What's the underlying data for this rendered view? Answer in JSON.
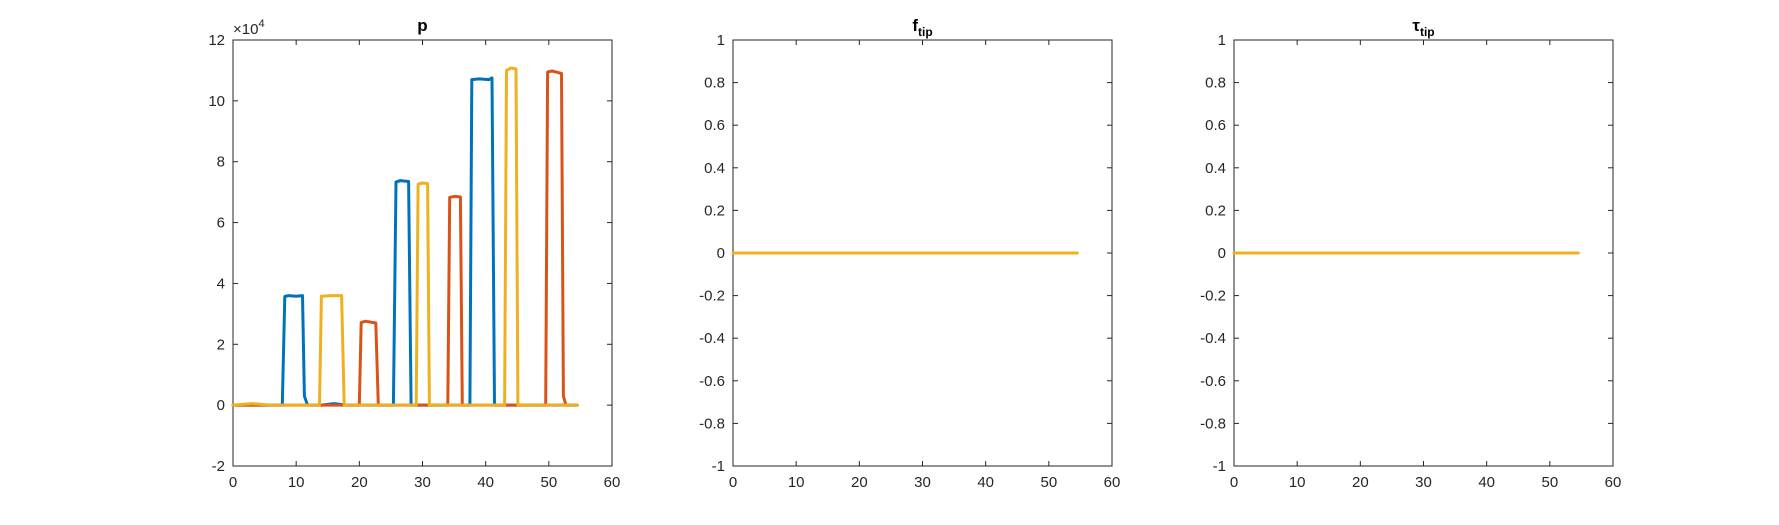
{
  "chart_data": [
    {
      "type": "line",
      "title": "p",
      "exponent_label": {
        "base": "×10",
        "power": "4"
      },
      "xlim": [
        0,
        60
      ],
      "ylim": [
        -2,
        12
      ],
      "xticks": [
        0,
        10,
        20,
        30,
        40,
        50,
        60
      ],
      "yticks": [
        -2,
        0,
        2,
        4,
        6,
        8,
        10,
        12
      ],
      "xtick_labels": [
        "0",
        "10",
        "20",
        "30",
        "40",
        "50",
        "60"
      ],
      "ytick_labels": [
        "-2",
        "0",
        "2",
        "4",
        "6",
        "8",
        "10",
        "12"
      ],
      "series": [
        {
          "color": "#0072BD",
          "points": [
            [
              0,
              0
            ],
            [
              7.8,
              0
            ],
            [
              8.2,
              3.57
            ],
            [
              8.8,
              3.6
            ],
            [
              10,
              3.58
            ],
            [
              11,
              3.6
            ],
            [
              11.3,
              0.3
            ],
            [
              11.8,
              0
            ],
            [
              14,
              0
            ],
            [
              16,
              0.05
            ],
            [
              18,
              0
            ],
            [
              20,
              0
            ],
            [
              25.4,
              0
            ],
            [
              25.8,
              7.33
            ],
            [
              26.5,
              7.38
            ],
            [
              27.8,
              7.35
            ],
            [
              28.2,
              0
            ],
            [
              35,
              0
            ],
            [
              37.5,
              0
            ],
            [
              37.8,
              10.7
            ],
            [
              39,
              10.72
            ],
            [
              40.5,
              10.7
            ],
            [
              41,
              10.75
            ],
            [
              41.4,
              0
            ],
            [
              43,
              0
            ],
            [
              46,
              0
            ],
            [
              54.5,
              0
            ]
          ]
        },
        {
          "color": "#D95319",
          "points": [
            [
              0,
              0
            ],
            [
              5,
              0
            ],
            [
              10,
              0
            ],
            [
              14,
              0
            ],
            [
              19,
              0
            ],
            [
              20,
              0
            ],
            [
              20.3,
              2.72
            ],
            [
              21,
              2.76
            ],
            [
              22,
              2.72
            ],
            [
              22.6,
              2.7
            ],
            [
              23,
              0
            ],
            [
              28,
              0
            ],
            [
              31,
              0
            ],
            [
              33,
              0
            ],
            [
              34,
              0
            ],
            [
              34.3,
              6.83
            ],
            [
              35.2,
              6.86
            ],
            [
              36,
              6.84
            ],
            [
              36.3,
              0
            ],
            [
              40,
              0
            ],
            [
              47,
              0
            ],
            [
              49.5,
              0
            ],
            [
              49.8,
              10.95
            ],
            [
              50.5,
              10.98
            ],
            [
              51.5,
              10.93
            ],
            [
              52,
              10.9
            ],
            [
              52.3,
              0.3
            ],
            [
              52.7,
              0
            ],
            [
              54.5,
              0
            ]
          ]
        },
        {
          "color": "#EDB120",
          "points": [
            [
              0,
              0
            ],
            [
              3,
              0.05
            ],
            [
              6,
              0
            ],
            [
              10,
              0
            ],
            [
              13.7,
              0
            ],
            [
              14,
              3.58
            ],
            [
              15.5,
              3.6
            ],
            [
              17.2,
              3.6
            ],
            [
              17.6,
              0
            ],
            [
              22,
              0
            ],
            [
              25,
              0
            ],
            [
              29,
              0
            ],
            [
              29.3,
              7.26
            ],
            [
              30,
              7.3
            ],
            [
              30.8,
              7.28
            ],
            [
              31.1,
              0
            ],
            [
              34,
              0
            ],
            [
              37,
              0
            ],
            [
              40,
              0
            ],
            [
              42,
              0
            ],
            [
              43,
              0
            ],
            [
              43.3,
              11
            ],
            [
              44,
              11.08
            ],
            [
              44.8,
              11.05
            ],
            [
              45.1,
              0
            ],
            [
              50,
              0
            ],
            [
              54.5,
              0
            ]
          ]
        }
      ]
    },
    {
      "type": "line",
      "title": "f",
      "title_subscript": "tip",
      "xlim": [
        0,
        60
      ],
      "ylim": [
        -1,
        1
      ],
      "xticks": [
        0,
        10,
        20,
        30,
        40,
        50,
        60
      ],
      "yticks": [
        -1,
        -0.8,
        -0.6,
        -0.4,
        -0.2,
        0,
        0.2,
        0.4,
        0.6,
        0.8,
        1
      ],
      "xtick_labels": [
        "0",
        "10",
        "20",
        "30",
        "40",
        "50",
        "60"
      ],
      "ytick_labels": [
        "-1",
        "-0.8",
        "-0.6",
        "-0.4",
        "-0.2",
        "0",
        "0.2",
        "0.4",
        "0.6",
        "0.8",
        "1"
      ],
      "series": [
        {
          "color": "#EDB120",
          "points": [
            [
              0,
              0
            ],
            [
              54.5,
              0
            ]
          ]
        }
      ]
    },
    {
      "type": "line",
      "title": "τ",
      "title_subscript": "tip",
      "xlim": [
        0,
        60
      ],
      "ylim": [
        -1,
        1
      ],
      "xticks": [
        0,
        10,
        20,
        30,
        40,
        50,
        60
      ],
      "yticks": [
        -1,
        -0.8,
        -0.6,
        -0.4,
        -0.2,
        0,
        0.2,
        0.4,
        0.6,
        0.8,
        1
      ],
      "xtick_labels": [
        "0",
        "10",
        "20",
        "30",
        "40",
        "50",
        "60"
      ],
      "ytick_labels": [
        "-1",
        "-0.8",
        "-0.6",
        "-0.4",
        "-0.2",
        "0",
        "0.2",
        "0.4",
        "0.6",
        "0.8",
        "1"
      ],
      "series": [
        {
          "color": "#EDB120",
          "points": [
            [
              0,
              0
            ],
            [
              54.5,
              0
            ]
          ]
        }
      ]
    }
  ]
}
